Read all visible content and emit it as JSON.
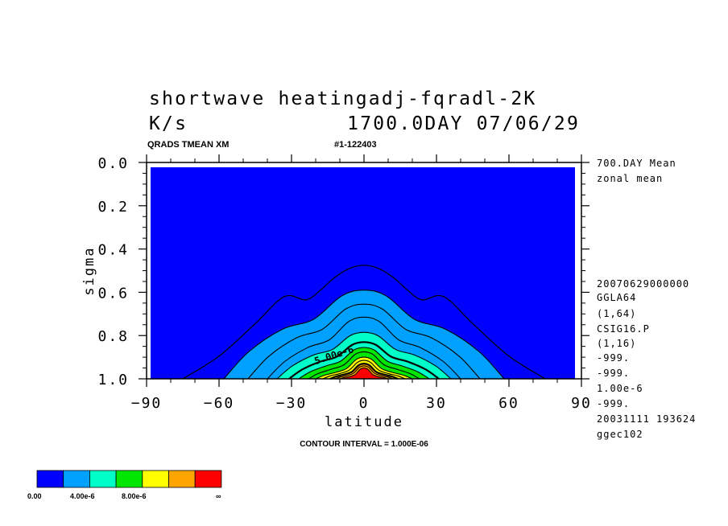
{
  "header": {
    "title_line1": "shortwave heatingadj-fqradl-2K",
    "title_units": "K/s",
    "title_time": "1700.0DAY 07/06/29",
    "sub_left": "QRADS TMEAN XM",
    "sub_right": "#1-122403"
  },
  "side_notes": {
    "top": [
      "700.DAY Mean",
      "zonal mean"
    ],
    "middle": [
      "20070629000000",
      "GGLA64",
      "(1,64)",
      "CSIG16.P",
      "(1,16)",
      "-999.",
      "-999.",
      "1.00e-6",
      "-999.",
      "20031111 193624",
      "ggec102"
    ]
  },
  "footer": {
    "contour_interval": "CONTOUR INTERVAL = 1.000E-06"
  },
  "colorbar": {
    "colors": [
      "#0000ff",
      "#00a0ff",
      "#00ffc8",
      "#00e600",
      "#ffff00",
      "#ffa500",
      "#ff0000"
    ],
    "labels": [
      "0.00",
      "4.00e-6",
      "8.00e-6",
      "∞"
    ]
  },
  "chart_data": {
    "type": "contour",
    "xlabel": "latitude",
    "ylabel": "sigma",
    "xlim": [
      -90,
      90
    ],
    "ylim": [
      1.0,
      0.0
    ],
    "xticks": [
      "−90",
      "−60",
      "−30",
      "0",
      "30",
      "60",
      "90"
    ],
    "xtick_values": [
      -90,
      -60,
      -30,
      0,
      30,
      60,
      90
    ],
    "yticks": [
      "0.0",
      "0.2",
      "0.4",
      "0.6",
      "0.8",
      "1.0"
    ],
    "ytick_values": [
      0.0,
      0.2,
      0.4,
      0.6,
      0.8,
      1.0
    ],
    "contour_interval": 1e-06,
    "contour_label": "5.00e-6",
    "contour_label_latitude": -12,
    "contour_label_sigma": 0.905,
    "zero_contour": {
      "lat": [
        -75,
        -60,
        -45,
        -33,
        -24,
        -18,
        -12,
        -6,
        0,
        6,
        12,
        18,
        24,
        33,
        45,
        60,
        75
      ],
      "sigma": [
        1.0,
        0.895,
        0.745,
        0.62,
        0.635,
        0.59,
        0.53,
        0.49,
        0.475,
        0.49,
        0.53,
        0.59,
        0.635,
        0.62,
        0.745,
        0.895,
        1.0
      ]
    },
    "filled_contours": [
      {
        "value": 1e-06,
        "color_index": 1,
        "half_width": 58,
        "top_sigma": 0.59,
        "shoulder_sigma": 0.77
      },
      {
        "value": 2e-06,
        "color_index": 1,
        "half_width": 48,
        "top_sigma": 0.655,
        "shoulder_sigma": 0.81
      },
      {
        "value": 3e-06,
        "color_index": 1,
        "half_width": 40,
        "top_sigma": 0.715,
        "shoulder_sigma": 0.855
      },
      {
        "value": 4e-06,
        "color_index": 2,
        "half_width": 36,
        "top_sigma": 0.785,
        "shoulder_sigma": 0.89
      },
      {
        "value": 5e-06,
        "color_index": 2,
        "half_width": 31,
        "top_sigma": 0.83,
        "shoulder_sigma": 0.92
      },
      {
        "value": 6e-06,
        "color_index": 3,
        "half_width": 27,
        "top_sigma": 0.855,
        "shoulder_sigma": 0.94
      },
      {
        "value": 7e-06,
        "color_index": 3,
        "half_width": 23,
        "top_sigma": 0.875,
        "shoulder_sigma": 0.955
      },
      {
        "value": 8e-06,
        "color_index": 4,
        "half_width": 20,
        "top_sigma": 0.9,
        "shoulder_sigma": 0.97
      },
      {
        "value": 9e-06,
        "color_index": 4,
        "half_width": 17,
        "top_sigma": 0.915,
        "shoulder_sigma": 0.975
      },
      {
        "value": 1e-05,
        "color_index": 5,
        "half_width": 14,
        "top_sigma": 0.93,
        "shoulder_sigma": 0.98
      },
      {
        "value": 1.1e-05,
        "color_index": 5,
        "half_width": 12,
        "top_sigma": 0.94,
        "shoulder_sigma": 0.985
      },
      {
        "value": 1.2e-05,
        "color_index": 6,
        "half_width": 10,
        "top_sigma": 0.95,
        "shoulder_sigma": 0.99
      }
    ]
  }
}
